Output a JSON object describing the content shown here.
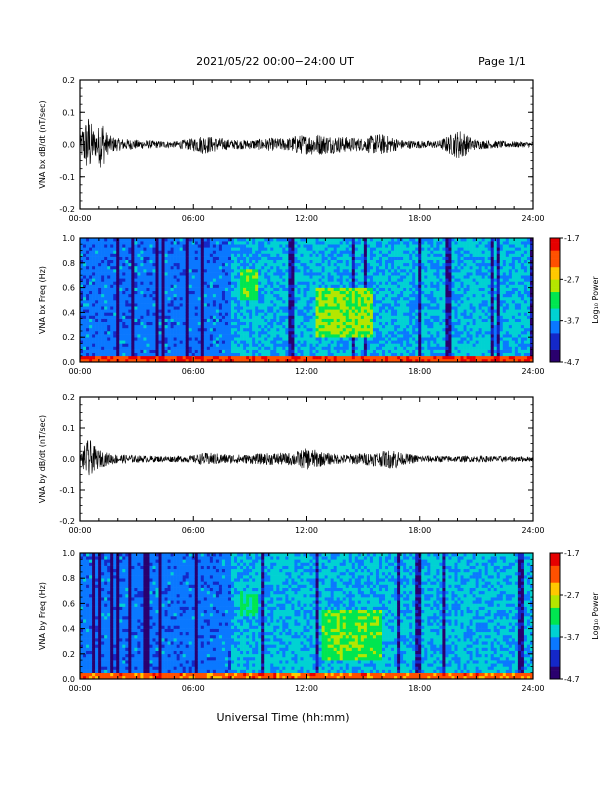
{
  "header": {
    "title": "2021/05/22  00:00−24:00 UT",
    "page": "Page 1/1"
  },
  "xlabel": "Universal Time (hh:mm)",
  "colors": {
    "trace": "#000000",
    "colormap": [
      "#2a006e",
      "#1428c8",
      "#0a78ff",
      "#00d2d2",
      "#00e650",
      "#b4e600",
      "#ffc800",
      "#ff5000",
      "#e60000"
    ]
  },
  "chart_data": [
    {
      "type": "line",
      "ylabel": "VNA bx dB/dt (nT/sec)",
      "xlim": [
        0,
        24
      ],
      "ylim": [
        -0.2,
        0.2
      ],
      "x_ticks": [
        "00:00",
        "06:00",
        "12:00",
        "18:00",
        "24:00"
      ],
      "y_ticks": [
        "-0.2",
        "-0.1",
        "0.0",
        "0.1",
        "0.2"
      ],
      "series": [
        {
          "x": [
            0,
            0.1,
            0.3,
            0.5,
            0.6,
            0.8,
            1.0,
            1.2,
            1.3,
            1.5,
            2,
            3,
            4,
            5,
            6,
            6.5,
            7,
            8,
            9,
            10,
            11,
            11.5,
            12,
            12.5,
            13,
            14,
            15,
            15.8,
            16.5,
            17,
            18,
            19,
            20.2,
            20.5,
            21,
            22,
            23,
            24
          ],
          "envelope": [
            0.01,
            0.05,
            0.08,
            0.1,
            0.07,
            0.04,
            0.06,
            0.09,
            0.05,
            0.03,
            0.02,
            0.015,
            0.012,
            0.01,
            0.02,
            0.03,
            0.025,
            0.015,
            0.015,
            0.02,
            0.02,
            0.03,
            0.03,
            0.035,
            0.03,
            0.025,
            0.02,
            0.035,
            0.025,
            0.015,
            0.012,
            0.012,
            0.05,
            0.03,
            0.015,
            0.012,
            0.01,
            0.008
          ]
        }
      ]
    },
    {
      "type": "heatmap",
      "ylabel": "VNA bx Freq (Hz)",
      "xlim": [
        0,
        24
      ],
      "ylim": [
        0,
        1.0
      ],
      "x_ticks": [
        "00:00",
        "06:00",
        "12:00",
        "18:00",
        "24:00"
      ],
      "y_ticks": [
        "0.0",
        "0.2",
        "0.4",
        "0.6",
        "0.8",
        "1.0"
      ],
      "colorbar": {
        "label": "Log₁₀ Power",
        "range": [
          -4.7,
          -1.7
        ],
        "ticks": [
          "-1.7",
          "-2.7",
          "-3.7",
          "-4.7"
        ]
      },
      "features": [
        {
          "t": [
            8.5,
            9.5
          ],
          "f": [
            0.5,
            0.75
          ],
          "level": 0.55
        },
        {
          "t": [
            12.5,
            15.5
          ],
          "f": [
            0.2,
            0.6
          ],
          "level": 0.6
        },
        {
          "t": [
            0,
            24
          ],
          "f": [
            0.0,
            0.05
          ],
          "level": 0.9
        }
      ]
    },
    {
      "type": "line",
      "ylabel": "VNA by dB/dt (nT/sec)",
      "xlim": [
        0,
        24
      ],
      "ylim": [
        -0.2,
        0.2
      ],
      "x_ticks": [
        "00:00",
        "06:00",
        "12:00",
        "18:00",
        "24:00"
      ],
      "y_ticks": [
        "-0.2",
        "-0.1",
        "0.0",
        "0.1",
        "0.2"
      ],
      "series": [
        {
          "x": [
            0,
            0.2,
            0.4,
            0.5,
            0.6,
            0.8,
            1.0,
            1.5,
            2,
            3,
            4,
            5,
            6,
            6.5,
            7,
            8,
            9,
            10,
            11,
            11.5,
            12,
            12.5,
            13,
            14,
            15,
            16,
            16.7,
            17,
            18,
            20,
            22,
            24
          ],
          "envelope": [
            0.01,
            0.04,
            0.06,
            0.08,
            0.05,
            0.04,
            0.03,
            0.02,
            0.015,
            0.012,
            0.01,
            0.01,
            0.012,
            0.02,
            0.02,
            0.015,
            0.015,
            0.02,
            0.02,
            0.025,
            0.035,
            0.03,
            0.02,
            0.015,
            0.02,
            0.025,
            0.035,
            0.02,
            0.012,
            0.01,
            0.01,
            0.008
          ]
        }
      ]
    },
    {
      "type": "heatmap",
      "ylabel": "VNA by Freq (Hz)",
      "xlim": [
        0,
        24
      ],
      "ylim": [
        0,
        1.0
      ],
      "x_ticks": [
        "00:00",
        "06:00",
        "12:00",
        "18:00",
        "24:00"
      ],
      "y_ticks": [
        "0.0",
        "0.2",
        "0.4",
        "0.6",
        "0.8",
        "1.0"
      ],
      "colorbar": {
        "label": "Log₁₀ Power",
        "range": [
          -4.7,
          -1.7
        ],
        "ticks": [
          "-1.7",
          "-2.7",
          "-3.7",
          "-4.7"
        ]
      },
      "features": [
        {
          "t": [
            8.5,
            9.5
          ],
          "f": [
            0.5,
            0.7
          ],
          "level": 0.5
        },
        {
          "t": [
            12.8,
            16.0
          ],
          "f": [
            0.15,
            0.55
          ],
          "level": 0.55
        },
        {
          "t": [
            0,
            24
          ],
          "f": [
            0.0,
            0.05
          ],
          "level": 0.85
        }
      ]
    }
  ]
}
